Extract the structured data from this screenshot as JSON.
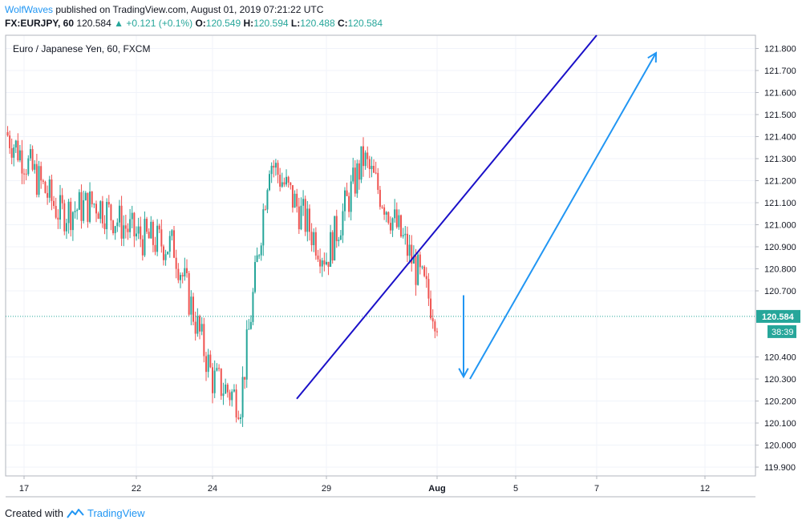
{
  "header": {
    "author": "WolfWaves",
    "published_text": "published on TradingView.com, August 01, 2019 07:21:22 UTC",
    "symbol": "FX:EURJPY, 60",
    "last": "120.584",
    "change_arrow": "▲",
    "change": "+0.121 (+0.1%)",
    "o_label": "O:",
    "o_val": "120.549",
    "h_label": "H:",
    "h_val": "120.594",
    "l_label": "L:",
    "l_val": "120.488",
    "c_label": "C:",
    "c_val": "120.584"
  },
  "legend_title": "Euro / Japanese Yen, 60, FXCM",
  "footer": {
    "created_with": "Created with",
    "brand": "TradingView",
    "logo_icon": "tradingview-logo-icon"
  },
  "colors": {
    "up": "#26a69a",
    "down": "#ef5350",
    "trendline": "#1a10c8",
    "arrow": "#2196f3",
    "price_line": "#26a69a",
    "grid": "#f0f3fa"
  },
  "chart_data": {
    "type": "candlestick",
    "title": "Euro / Japanese Yen, 60, FXCM",
    "ylim": [
      119.86,
      121.86
    ],
    "y_ticks": [
      "121.800",
      "121.700",
      "121.600",
      "121.500",
      "121.400",
      "121.300",
      "121.200",
      "121.100",
      "121.000",
      "120.900",
      "120.800",
      "120.700",
      "120.400",
      "120.300",
      "120.200",
      "120.100",
      "120.000",
      "119.900"
    ],
    "x_ticks": [
      "17",
      "22",
      "24",
      "29",
      "Aug",
      "5",
      "7",
      "12"
    ],
    "current_price": "120.584",
    "countdown": "38:39",
    "grid": true,
    "series": [
      {
        "date": "Jul 16",
        "close": 121.42
      },
      {
        "date": "Jul 17",
        "close": 121.3
      },
      {
        "date": "Jul 18",
        "close": 121.05
      },
      {
        "date": "Jul 19",
        "close": 121.1
      },
      {
        "date": "Jul 22",
        "close": 120.95
      },
      {
        "date": "Jul 23",
        "close": 120.9
      },
      {
        "date": "Jul 24",
        "close": 120.3
      },
      {
        "date": "Jul 25",
        "close": 120.2
      },
      {
        "date": "Jul 26",
        "close": 121.3
      },
      {
        "date": "Jul 29",
        "close": 120.85
      },
      {
        "date": "Jul 30",
        "close": 121.3
      },
      {
        "date": "Jul 31",
        "close": 120.95
      },
      {
        "date": "Aug 1",
        "close": 120.584
      }
    ],
    "annotations": [
      {
        "type": "trendline",
        "from": {
          "date": "Jul 28",
          "price": 120.21
        },
        "to": {
          "date": "Aug 7",
          "price": 121.86
        }
      },
      {
        "type": "arrow",
        "from": {
          "date": "Aug 2",
          "price": 120.68
        },
        "to": {
          "date": "Aug 2",
          "price": 120.31
        }
      },
      {
        "type": "arrow",
        "from": {
          "date": "Aug 3",
          "price": 120.3
        },
        "to": {
          "date": "Aug 9",
          "price": 121.78
        }
      }
    ]
  }
}
